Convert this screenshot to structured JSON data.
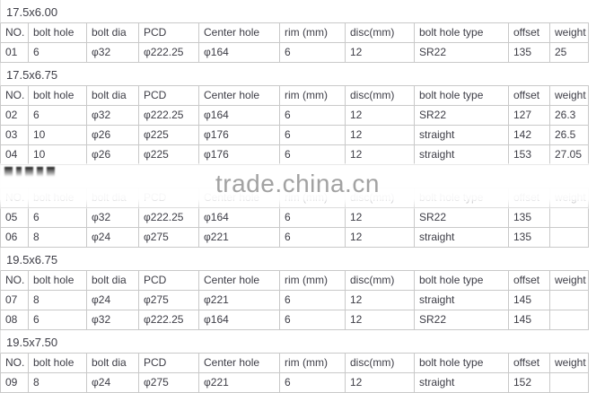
{
  "watermark": "trade.china.cn",
  "colors": {
    "border": "#c9c9c9",
    "text": "#3d3d46",
    "watermark": "#a2a2a2"
  },
  "table": {
    "columns": [
      "NO.",
      "bolt hole",
      "bolt dia",
      "PCD",
      "Center hole",
      "rim (mm)",
      "disc(mm)",
      "bolt hole type",
      "offset",
      "weight"
    ],
    "sections": [
      {
        "title": "17.5x6.00",
        "obscured": false,
        "rows": [
          [
            "01",
            "6",
            "φ32",
            "φ222.25",
            "φ164",
            "6",
            "12",
            "SR22",
            "135",
            "25"
          ]
        ]
      },
      {
        "title": "17.5x6.75",
        "obscured": false,
        "rows": [
          [
            "02",
            "6",
            "φ32",
            "φ222.25",
            "φ164",
            "6",
            "12",
            "SR22",
            "127",
            "26.3"
          ],
          [
            "03",
            "10",
            "φ26",
            "φ225",
            "φ176",
            "6",
            "12",
            "straight",
            "142",
            "26.5"
          ],
          [
            "04",
            "10",
            "φ26",
            "φ225",
            "φ176",
            "6",
            "12",
            "straight",
            "153",
            "27.05"
          ]
        ]
      },
      {
        "title": "",
        "obscured": true,
        "rows": [
          [
            "05",
            "6",
            "φ32",
            "φ222.25",
            "φ164",
            "6",
            "12",
            "SR22",
            "135",
            ""
          ],
          [
            "06",
            "8",
            "φ24",
            "φ275",
            "φ221",
            "6",
            "12",
            "straight",
            "135",
            ""
          ]
        ]
      },
      {
        "title": "19.5x6.75",
        "obscured": false,
        "rows": [
          [
            "07",
            "8",
            "φ24",
            "φ275",
            "φ221",
            "6",
            "12",
            "straight",
            "145",
            ""
          ],
          [
            "08",
            "6",
            "φ32",
            "φ222.25",
            "φ164",
            "6",
            "12",
            "SR22",
            "145",
            ""
          ]
        ]
      },
      {
        "title": "19.5x7.50",
        "obscured": false,
        "rows": [
          [
            "09",
            "8",
            "φ24",
            "φ275",
            "φ221",
            "6",
            "12",
            "straight",
            "152",
            ""
          ]
        ]
      }
    ]
  }
}
